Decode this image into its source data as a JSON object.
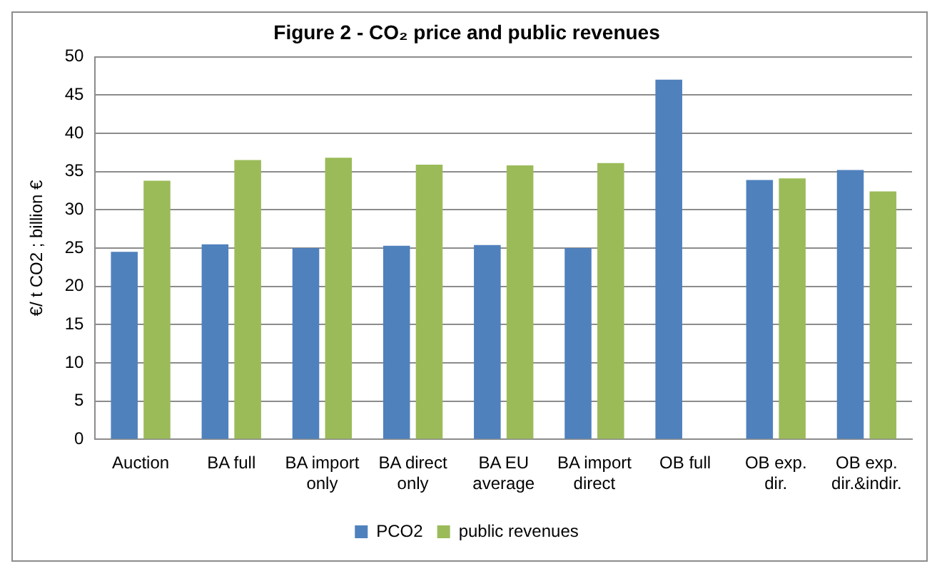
{
  "chart_data": {
    "type": "bar",
    "title": "Figure 2 - CO₂ price and public revenues",
    "ylabel": "€/ t CO2 ; billion €",
    "categories": [
      "Auction",
      "BA full",
      "BA import only",
      "BA direct only",
      "BA EU average",
      "BA import direct",
      "OB full",
      "OB exp. dir.",
      "OB exp. dir.&indir."
    ],
    "series": [
      {
        "name": "PCO2",
        "color": "#4f81bd",
        "values": [
          24.5,
          25.5,
          25.0,
          25.3,
          25.4,
          25.0,
          47.0,
          33.9,
          35.2
        ]
      },
      {
        "name": "public revenues",
        "color": "#9bbb59",
        "values": [
          33.8,
          36.5,
          36.8,
          35.9,
          35.8,
          36.1,
          null,
          34.1,
          32.4
        ]
      }
    ],
    "ylim": [
      0,
      50
    ],
    "yticks": [
      0,
      5,
      10,
      15,
      20,
      25,
      30,
      35,
      40,
      45,
      50
    ],
    "grid": "y",
    "legend": "bottom"
  }
}
